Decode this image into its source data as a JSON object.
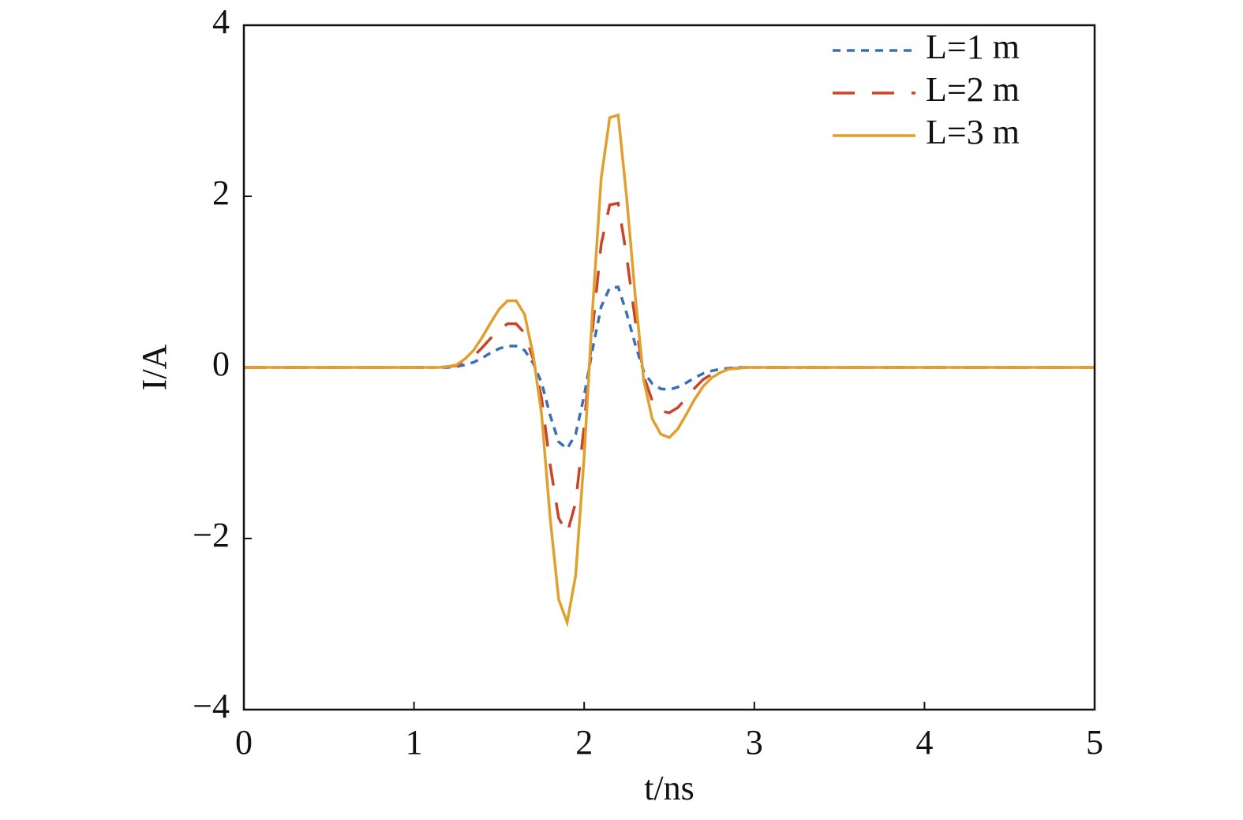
{
  "chart_data": {
    "type": "line",
    "x_label": "t/ns",
    "y_label": "I/A",
    "x": [
      0,
      0.5,
      1.0,
      1.05,
      1.1,
      1.15,
      1.2,
      1.25,
      1.3,
      1.35,
      1.4,
      1.45,
      1.5,
      1.55,
      1.6,
      1.65,
      1.7,
      1.75,
      1.8,
      1.85,
      1.9,
      1.95,
      2.0,
      2.05,
      2.1,
      2.15,
      2.2,
      2.25,
      2.3,
      2.35,
      2.4,
      2.45,
      2.5,
      2.55,
      2.6,
      2.65,
      2.7,
      2.75,
      2.8,
      2.85,
      2.9,
      2.95,
      3.0,
      3.5,
      4.0,
      4.5,
      5.0
    ],
    "series": [
      {
        "name": "L=1 m",
        "color": "#3a6fb7",
        "line_style": "dotted",
        "values": [
          0,
          0,
          0,
          0,
          0,
          0,
          0,
          0.01,
          0.03,
          0.06,
          0.11,
          0.17,
          0.22,
          0.25,
          0.25,
          0.2,
          0.05,
          -0.18,
          -0.56,
          -0.87,
          -0.95,
          -0.78,
          -0.33,
          0.22,
          0.71,
          0.93,
          0.94,
          0.63,
          0.27,
          -0.05,
          -0.19,
          -0.25,
          -0.26,
          -0.23,
          -0.18,
          -0.12,
          -0.07,
          -0.04,
          -0.02,
          -0.01,
          0,
          0,
          0,
          0,
          0,
          0,
          0
        ]
      },
      {
        "name": "L=2 m",
        "color": "#c8452a",
        "line_style": "dashed",
        "values": [
          0,
          0,
          0,
          0,
          0,
          0,
          0.01,
          0.02,
          0.07,
          0.13,
          0.23,
          0.34,
          0.44,
          0.51,
          0.51,
          0.4,
          0.1,
          -0.36,
          -1.14,
          -1.76,
          -1.94,
          -1.58,
          -0.68,
          0.46,
          1.44,
          1.9,
          1.92,
          1.29,
          0.55,
          -0.1,
          -0.39,
          -0.51,
          -0.53,
          -0.47,
          -0.36,
          -0.24,
          -0.14,
          -0.08,
          -0.04,
          -0.01,
          -0.01,
          0,
          0,
          0,
          0,
          0,
          0
        ]
      },
      {
        "name": "L=3 m",
        "color": "#e0a030",
        "line_style": "solid",
        "values": [
          0,
          0,
          0,
          0,
          0,
          0,
          0.01,
          0.03,
          0.1,
          0.2,
          0.35,
          0.52,
          0.68,
          0.78,
          0.78,
          0.62,
          0.15,
          -0.55,
          -1.76,
          -2.71,
          -2.98,
          -2.43,
          -1.04,
          0.7,
          2.21,
          2.92,
          2.95,
          1.98,
          0.84,
          -0.15,
          -0.6,
          -0.78,
          -0.82,
          -0.72,
          -0.55,
          -0.37,
          -0.22,
          -0.12,
          -0.06,
          -0.02,
          -0.01,
          0,
          0,
          0,
          0,
          0,
          0
        ]
      }
    ],
    "xlim": [
      0,
      5
    ],
    "xticks": [
      0,
      1,
      2,
      3,
      4,
      5
    ],
    "ylim": [
      -4,
      4
    ],
    "yticks": [
      {
        "value": -4,
        "label": "−4"
      },
      {
        "value": -2,
        "label": "−2"
      },
      0,
      2,
      4
    ],
    "legend": "upper right",
    "grid": false
  }
}
